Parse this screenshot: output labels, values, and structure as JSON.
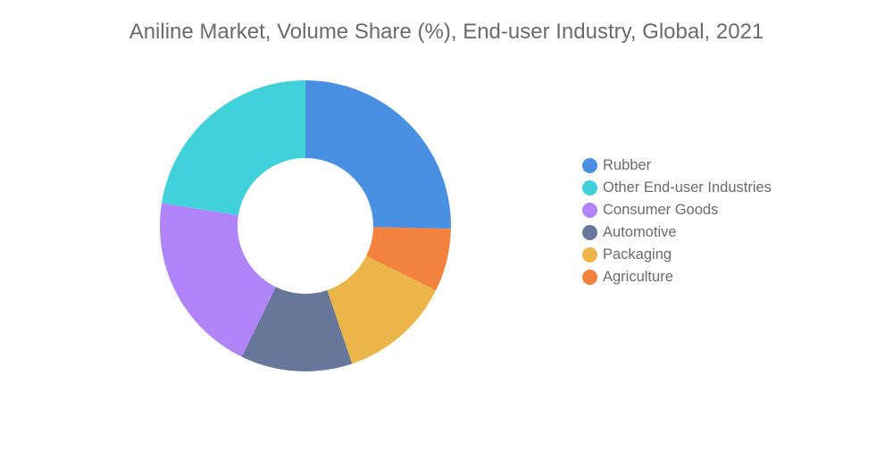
{
  "chart_data": {
    "type": "pie",
    "title": "Aniline Market, Volume Share (%), End-user Industry, Global, 2021",
    "donut": true,
    "series": [
      {
        "name": "Rubber",
        "value": 25.3,
        "color": "#4a90e2"
      },
      {
        "name": "Other End-user Industries",
        "value": 22.5,
        "color": "#40d1db"
      },
      {
        "name": "Consumer Goods",
        "value": 20.3,
        "color": "#b185f9"
      },
      {
        "name": "Automotive",
        "value": 12.4,
        "color": "#667799"
      },
      {
        "name": "Packaging",
        "value": 12.5,
        "color": "#ecb54a"
      },
      {
        "name": "Agriculture",
        "value": 7.0,
        "color": "#f3823f"
      }
    ],
    "order_drawn_clockwise_from_top": [
      "Rubber",
      "Agriculture",
      "Packaging",
      "Automotive",
      "Consumer Goods",
      "Other End-user Industries"
    ],
    "legend_position": "right"
  }
}
